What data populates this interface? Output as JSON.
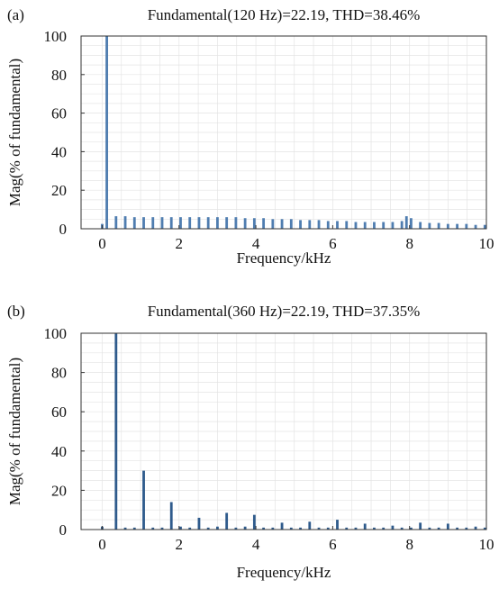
{
  "chart_data": [
    {
      "panel_label": "(a)",
      "type": "bar",
      "title": "Fundamental(120 Hz)=22.19, THD=38.46%",
      "xlabel": "Frequency/kHz",
      "ylabel": "Mag(% of fundamental)",
      "xlim": [
        -0.55,
        10
      ],
      "ylim": [
        0,
        100
      ],
      "xticks": [
        "0",
        "2",
        "4",
        "6",
        "8",
        "10"
      ],
      "yticks": [
        "0",
        "20",
        "40",
        "60",
        "80",
        "100"
      ],
      "grid": true,
      "bar_color": "#4f7db0",
      "x_unit": "kHz",
      "bin_width_khz": 0.12,
      "series": [
        {
          "x": [
            0.0,
            0.12,
            0.36,
            0.6,
            0.84,
            1.08,
            1.32,
            1.56,
            1.8,
            2.04,
            2.28,
            2.52,
            2.76,
            3.0,
            3.24,
            3.48,
            3.72,
            3.96,
            4.2,
            4.44,
            4.68,
            4.92,
            5.16,
            5.4,
            5.64,
            5.88,
            6.12,
            6.36,
            6.6,
            6.84,
            7.08,
            7.32,
            7.56,
            7.8,
            7.92,
            8.04,
            8.28,
            8.52,
            8.76,
            9.0,
            9.24,
            9.48,
            9.72,
            9.96
          ],
          "values": [
            2.5,
            100,
            6.5,
            6.5,
            6.0,
            6.0,
            6.0,
            6.0,
            6.0,
            6.0,
            6.0,
            6.0,
            6.0,
            6.0,
            6.0,
            6.0,
            5.5,
            5.5,
            5.5,
            5.0,
            5.0,
            5.0,
            4.5,
            4.5,
            4.5,
            4.0,
            4.0,
            4.0,
            3.5,
            3.5,
            3.5,
            3.5,
            3.5,
            4.0,
            6.5,
            5.5,
            3.5,
            3.0,
            3.0,
            2.5,
            2.5,
            2.5,
            2.0,
            2.0
          ]
        }
      ]
    },
    {
      "panel_label": "(b)",
      "type": "bar",
      "title": "Fundamental(360 Hz)=22.19, THD=37.35%",
      "xlabel": "Frequency/kHz",
      "ylabel": "Mag(% of fundamental)",
      "xlim": [
        -0.55,
        10
      ],
      "ylim": [
        0,
        100
      ],
      "xticks": [
        "0",
        "2",
        "4",
        "6",
        "8",
        "10"
      ],
      "yticks": [
        "0",
        "20",
        "40",
        "60",
        "80",
        "100"
      ],
      "grid": true,
      "bar_color": "#2f5b8c",
      "x_unit": "kHz",
      "bin_width_khz": 0.12,
      "series": [
        {
          "x": [
            0.0,
            0.36,
            0.6,
            0.84,
            1.08,
            1.32,
            1.56,
            1.8,
            2.04,
            2.28,
            2.52,
            2.76,
            3.0,
            3.24,
            3.48,
            3.72,
            3.96,
            4.2,
            4.44,
            4.68,
            4.92,
            5.16,
            5.4,
            5.64,
            5.88,
            6.12,
            6.36,
            6.6,
            6.84,
            7.08,
            7.32,
            7.56,
            7.8,
            8.04,
            8.28,
            8.52,
            8.76,
            9.0,
            9.24,
            9.48,
            9.72,
            9.96
          ],
          "values": [
            1.5,
            100,
            1.0,
            1.0,
            30,
            1.0,
            1.0,
            14,
            1.5,
            1.0,
            6.0,
            1.0,
            1.5,
            8.5,
            1.0,
            1.5,
            7.5,
            1.0,
            1.0,
            3.5,
            1.0,
            1.0,
            4.0,
            1.0,
            1.0,
            5.0,
            1.0,
            1.0,
            3.0,
            1.0,
            1.0,
            2.0,
            1.0,
            1.0,
            3.5,
            1.0,
            1.0,
            3.0,
            1.0,
            1.0,
            1.5,
            1.0
          ]
        }
      ]
    }
  ]
}
